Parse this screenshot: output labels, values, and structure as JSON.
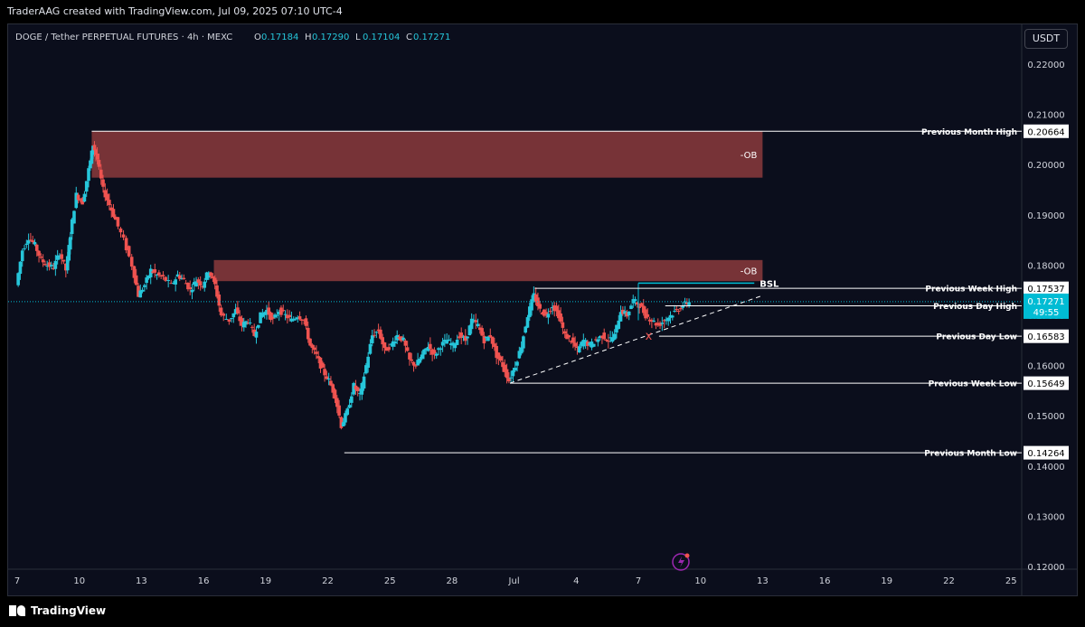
{
  "attribution": "TraderAAG created with TradingView.com, Jul 09, 2025 07:10 UTC-4",
  "brand": "TradingView",
  "currency_button": "USDT",
  "legend": {
    "symbol": "DOGE / Tether PERPETUAL FUTURES · 4h · MEXC",
    "ohlc": [
      {
        "k": "O",
        "v": "0.17184"
      },
      {
        "k": "H",
        "v": "0.17290"
      },
      {
        "k": "L",
        "v": "0.17104"
      },
      {
        "k": "C",
        "v": "0.17271"
      }
    ]
  },
  "colors": {
    "up": "#26c6da",
    "down": "#ef5350",
    "ob_fill": "#8b3a3c",
    "line": "#ffffff",
    "background": "#0b0e1c",
    "live_price": "#00bcd4"
  },
  "chart_data": {
    "type": "candlestick",
    "y_ticks": [
      "0.22000",
      "0.21000",
      "0.20000",
      "0.19000",
      "0.18000",
      "0.17000",
      "0.16000",
      "0.15000",
      "0.14000",
      "0.13000",
      "0.12000"
    ],
    "ylim": [
      0.1195,
      0.2245
    ],
    "x_ticks": [
      {
        "label": "7",
        "day": 7
      },
      {
        "label": "10",
        "day": 10
      },
      {
        "label": "13",
        "day": 13
      },
      {
        "label": "16",
        "day": 16
      },
      {
        "label": "19",
        "day": 19
      },
      {
        "label": "22",
        "day": 22
      },
      {
        "label": "25",
        "day": 25
      },
      {
        "label": "28",
        "day": 28
      },
      {
        "label": "Jul",
        "day": 31
      },
      {
        "label": "4",
        "day": 34
      },
      {
        "label": "7",
        "day": 37
      },
      {
        "label": "10",
        "day": 40
      },
      {
        "label": "13",
        "day": 43
      },
      {
        "label": "16",
        "day": 46
      },
      {
        "label": "19",
        "day": 49
      },
      {
        "label": "22",
        "day": 52
      },
      {
        "label": "25",
        "day": 55
      }
    ],
    "price_path": [
      [
        7.0,
        0.176
      ],
      [
        7.3,
        0.183
      ],
      [
        7.6,
        0.1855
      ],
      [
        7.9,
        0.184
      ],
      [
        8.2,
        0.181
      ],
      [
        8.5,
        0.18
      ],
      [
        8.8,
        0.1795
      ],
      [
        9.1,
        0.1825
      ],
      [
        9.4,
        0.179
      ],
      [
        9.6,
        0.186
      ],
      [
        9.9,
        0.194
      ],
      [
        10.2,
        0.1925
      ],
      [
        10.5,
        0.199
      ],
      [
        10.7,
        0.204
      ],
      [
        10.9,
        0.201
      ],
      [
        11.2,
        0.195
      ],
      [
        11.5,
        0.192
      ],
      [
        11.8,
        0.189
      ],
      [
        12.2,
        0.185
      ],
      [
        12.6,
        0.18
      ],
      [
        12.9,
        0.174
      ],
      [
        13.2,
        0.176
      ],
      [
        13.5,
        0.179
      ],
      [
        13.8,
        0.178
      ],
      [
        14.1,
        0.1775
      ],
      [
        14.5,
        0.176
      ],
      [
        14.8,
        0.178
      ],
      [
        15.1,
        0.177
      ],
      [
        15.4,
        0.175
      ],
      [
        15.7,
        0.177
      ],
      [
        16.0,
        0.176
      ],
      [
        16.3,
        0.179
      ],
      [
        16.6,
        0.176
      ],
      [
        16.9,
        0.17
      ],
      [
        17.3,
        0.169
      ],
      [
        17.6,
        0.171
      ],
      [
        17.9,
        0.168
      ],
      [
        18.2,
        0.169
      ],
      [
        18.5,
        0.166
      ],
      [
        18.8,
        0.17
      ],
      [
        19.1,
        0.171
      ],
      [
        19.4,
        0.169
      ],
      [
        19.7,
        0.171
      ],
      [
        20.0,
        0.17
      ],
      [
        20.3,
        0.169
      ],
      [
        20.6,
        0.17
      ],
      [
        20.9,
        0.169
      ],
      [
        21.2,
        0.164
      ],
      [
        21.5,
        0.162
      ],
      [
        21.8,
        0.159
      ],
      [
        22.1,
        0.157
      ],
      [
        22.4,
        0.154
      ],
      [
        22.7,
        0.148
      ],
      [
        23.0,
        0.151
      ],
      [
        23.3,
        0.156
      ],
      [
        23.6,
        0.154
      ],
      [
        23.9,
        0.16
      ],
      [
        24.2,
        0.166
      ],
      [
        24.5,
        0.167
      ],
      [
        24.8,
        0.163
      ],
      [
        25.1,
        0.164
      ],
      [
        25.4,
        0.166
      ],
      [
        25.7,
        0.165
      ],
      [
        26.0,
        0.161
      ],
      [
        26.3,
        0.16
      ],
      [
        26.6,
        0.162
      ],
      [
        26.9,
        0.164
      ],
      [
        27.2,
        0.162
      ],
      [
        27.5,
        0.164
      ],
      [
        27.8,
        0.165
      ],
      [
        28.1,
        0.164
      ],
      [
        28.4,
        0.166
      ],
      [
        28.7,
        0.165
      ],
      [
        29.0,
        0.169
      ],
      [
        29.3,
        0.168
      ],
      [
        29.6,
        0.165
      ],
      [
        29.9,
        0.166
      ],
      [
        30.2,
        0.162
      ],
      [
        30.5,
        0.16
      ],
      [
        30.8,
        0.157
      ],
      [
        31.1,
        0.16
      ],
      [
        31.4,
        0.164
      ],
      [
        31.7,
        0.17
      ],
      [
        32.0,
        0.174
      ],
      [
        32.3,
        0.171
      ],
      [
        32.6,
        0.17
      ],
      [
        32.9,
        0.172
      ],
      [
        33.2,
        0.17
      ],
      [
        33.5,
        0.166
      ],
      [
        33.8,
        0.165
      ],
      [
        34.1,
        0.163
      ],
      [
        34.4,
        0.165
      ],
      [
        34.7,
        0.164
      ],
      [
        35.0,
        0.165
      ],
      [
        35.3,
        0.166
      ],
      [
        35.6,
        0.165
      ],
      [
        35.9,
        0.166
      ],
      [
        36.2,
        0.171
      ],
      [
        36.5,
        0.17
      ],
      [
        36.8,
        0.173
      ],
      [
        37.1,
        0.172
      ],
      [
        37.4,
        0.17
      ],
      [
        37.7,
        0.169
      ],
      [
        38.0,
        0.168
      ],
      [
        38.3,
        0.169
      ],
      [
        38.6,
        0.17
      ],
      [
        38.9,
        0.171
      ],
      [
        39.2,
        0.172
      ],
      [
        39.5,
        0.1727
      ]
    ],
    "zones": [
      {
        "label": "-OB",
        "d1": 10.6,
        "d2": 43.0,
        "p_top": 0.2066,
        "p_bot": 0.1974
      },
      {
        "label": "-OB",
        "d1": 16.5,
        "d2": 43.0,
        "p_top": 0.181,
        "p_bot": 0.1768
      }
    ],
    "levels": [
      {
        "label": "Previous Month High",
        "price": 0.20664,
        "value": "0.20664",
        "d_start": 10.6,
        "d_end": 51.4
      },
      {
        "label": "Previous Week High",
        "price": 0.17537,
        "value": "0.17537",
        "d_start": 32.0,
        "d_end": 51.4
      },
      {
        "label": "Previous Day High",
        "price": 0.17188,
        "value": "0.17188",
        "d_start": 38.3,
        "d_end": 51.4
      },
      {
        "label": "Previous Day Low",
        "price": 0.16583,
        "value": "0.16583",
        "d_start": 38.0,
        "d_end": 51.4
      },
      {
        "label": "Previous Week Low",
        "price": 0.15649,
        "value": "0.15649",
        "d_start": 30.8,
        "d_end": 51.4
      },
      {
        "label": "Previous Month Low",
        "price": 0.14264,
        "value": "0.14264",
        "d_start": 22.8,
        "d_end": 51.4
      }
    ],
    "current_price": {
      "value": "0.17271",
      "price": 0.17271,
      "countdown": "49:55"
    },
    "bsl": {
      "label": "BSL",
      "price": 0.1764,
      "d1": 37.0,
      "d2": 42.6
    },
    "trendline": [
      [
        30.8,
        0.1565
      ],
      [
        42.9,
        0.1738
      ]
    ],
    "x_marker": {
      "label": "x",
      "day": 37.5,
      "price": 0.166
    }
  }
}
